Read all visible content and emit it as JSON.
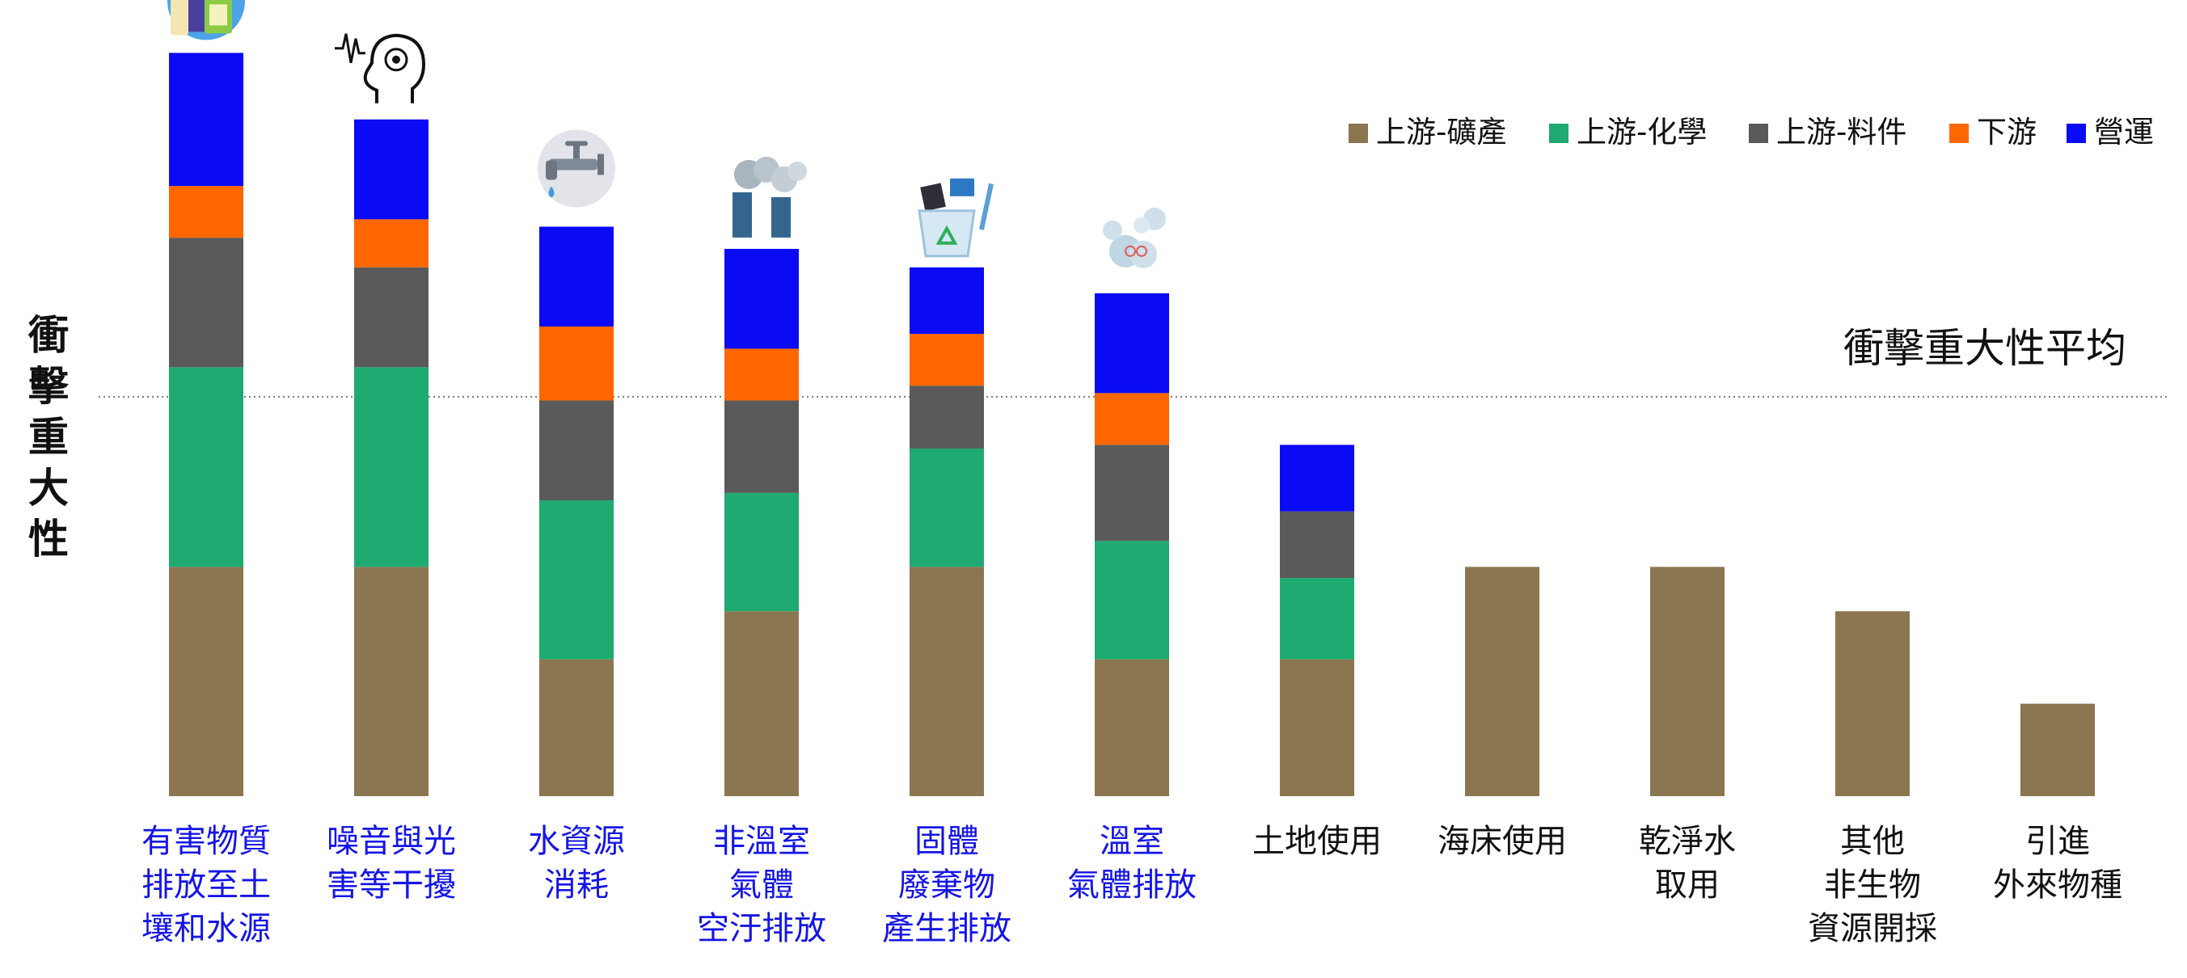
{
  "chart_data": {
    "type": "bar",
    "stacked": true,
    "title": "",
    "xlabel": "",
    "ylabel": "衝擊重大性",
    "ylim": [
      0,
      100
    ],
    "grid": false,
    "legend_position": "top-right",
    "average_label": "衝擊重大性平均",
    "average_value": 54,
    "categories": [
      {
        "lines": [
          "有害物質",
          "排放至土",
          "壤和水源"
        ],
        "highlighted": true,
        "icon": "chemical-bottles-icon"
      },
      {
        "lines": [
          "噪音與光",
          "害等干擾"
        ],
        "highlighted": true,
        "icon": "head-noise-icon"
      },
      {
        "lines": [
          "水資源",
          "消耗"
        ],
        "highlighted": true,
        "icon": "water-faucet-icon"
      },
      {
        "lines": [
          "非溫室",
          "氣體",
          "空汙排放"
        ],
        "highlighted": true,
        "icon": "factory-smoke-icon"
      },
      {
        "lines": [
          "固體",
          "廢棄物",
          "產生排放"
        ],
        "highlighted": true,
        "icon": "recycle-bin-icon"
      },
      {
        "lines": [
          "溫室",
          "氣體排放"
        ],
        "highlighted": true,
        "icon": "co2-cloud-icon"
      },
      {
        "lines": [
          "土地使用"
        ],
        "highlighted": false,
        "icon": ""
      },
      {
        "lines": [
          "海床使用"
        ],
        "highlighted": false,
        "icon": ""
      },
      {
        "lines": [
          "乾淨水",
          "取用"
        ],
        "highlighted": false,
        "icon": ""
      },
      {
        "lines": [
          "其他",
          "非生物",
          "資源開採"
        ],
        "highlighted": false,
        "icon": ""
      },
      {
        "lines": [
          "引進",
          "外來物種"
        ],
        "highlighted": false,
        "icon": ""
      }
    ],
    "series": [
      {
        "name": "上游-礦產",
        "color": "#8B7650",
        "values": [
          31,
          31,
          18.5,
          25,
          31,
          18.5,
          18.5,
          31,
          31,
          25,
          12.5
        ]
      },
      {
        "name": "上游-化學",
        "color": "#1EAA70",
        "values": [
          27,
          27,
          21.5,
          16,
          16,
          16,
          11,
          0,
          0,
          0,
          0
        ]
      },
      {
        "name": "上游-料件",
        "color": "#5A5A5A",
        "values": [
          17.5,
          13.5,
          13.5,
          12.5,
          8.5,
          13,
          9,
          0,
          0,
          0,
          0
        ]
      },
      {
        "name": "下游",
        "color": "#FF6600",
        "values": [
          7,
          6.5,
          10,
          7,
          7,
          7,
          0,
          0,
          0,
          0,
          0
        ]
      },
      {
        "name": "營運",
        "color": "#0A0AF5",
        "values": [
          18,
          13.5,
          13.5,
          13.5,
          9,
          13.5,
          9,
          0,
          0,
          0,
          0
        ]
      }
    ],
    "highlight_color": "#1515E6",
    "normal_label_color": "#111111"
  }
}
